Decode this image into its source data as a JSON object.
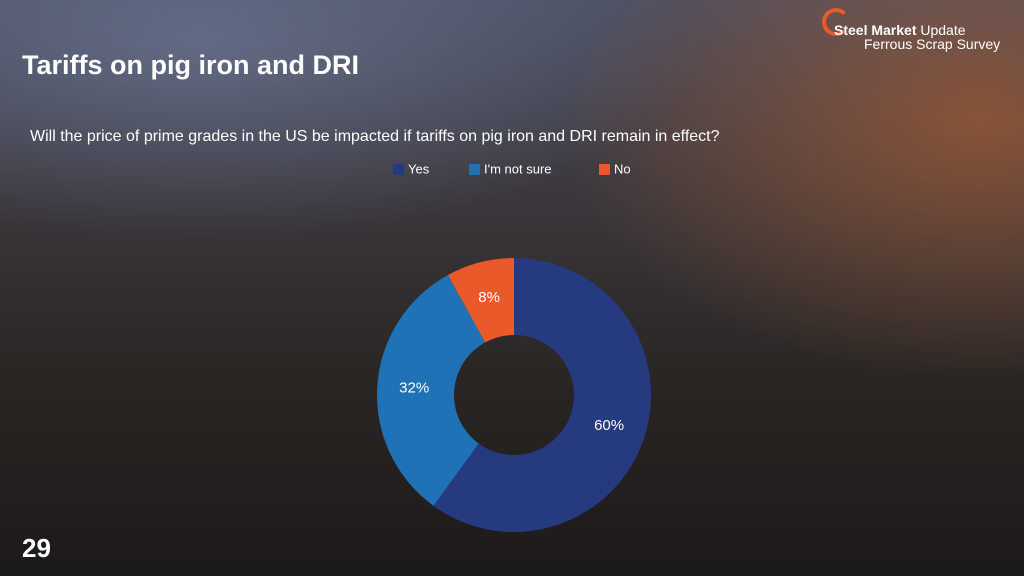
{
  "slide": {
    "brand_bold": "Steel Market",
    "brand_light": "Update",
    "brand_sub": "Ferrous Scrap Survey",
    "page_number": "29"
  },
  "chart_data": {
    "type": "donut",
    "title": "Tariffs on pig iron and DRI",
    "subtitle": "Will the price of prime grades in the US be impacted if tariffs on pig iron and DRI remain in effect?",
    "categories": [
      "Yes",
      "I'm not sure",
      "No"
    ],
    "values": [
      60,
      32,
      8
    ],
    "value_labels": [
      "60%",
      "32%",
      "8%"
    ],
    "colors": [
      "#263a80",
      "#1f72b6",
      "#e9592a"
    ]
  }
}
